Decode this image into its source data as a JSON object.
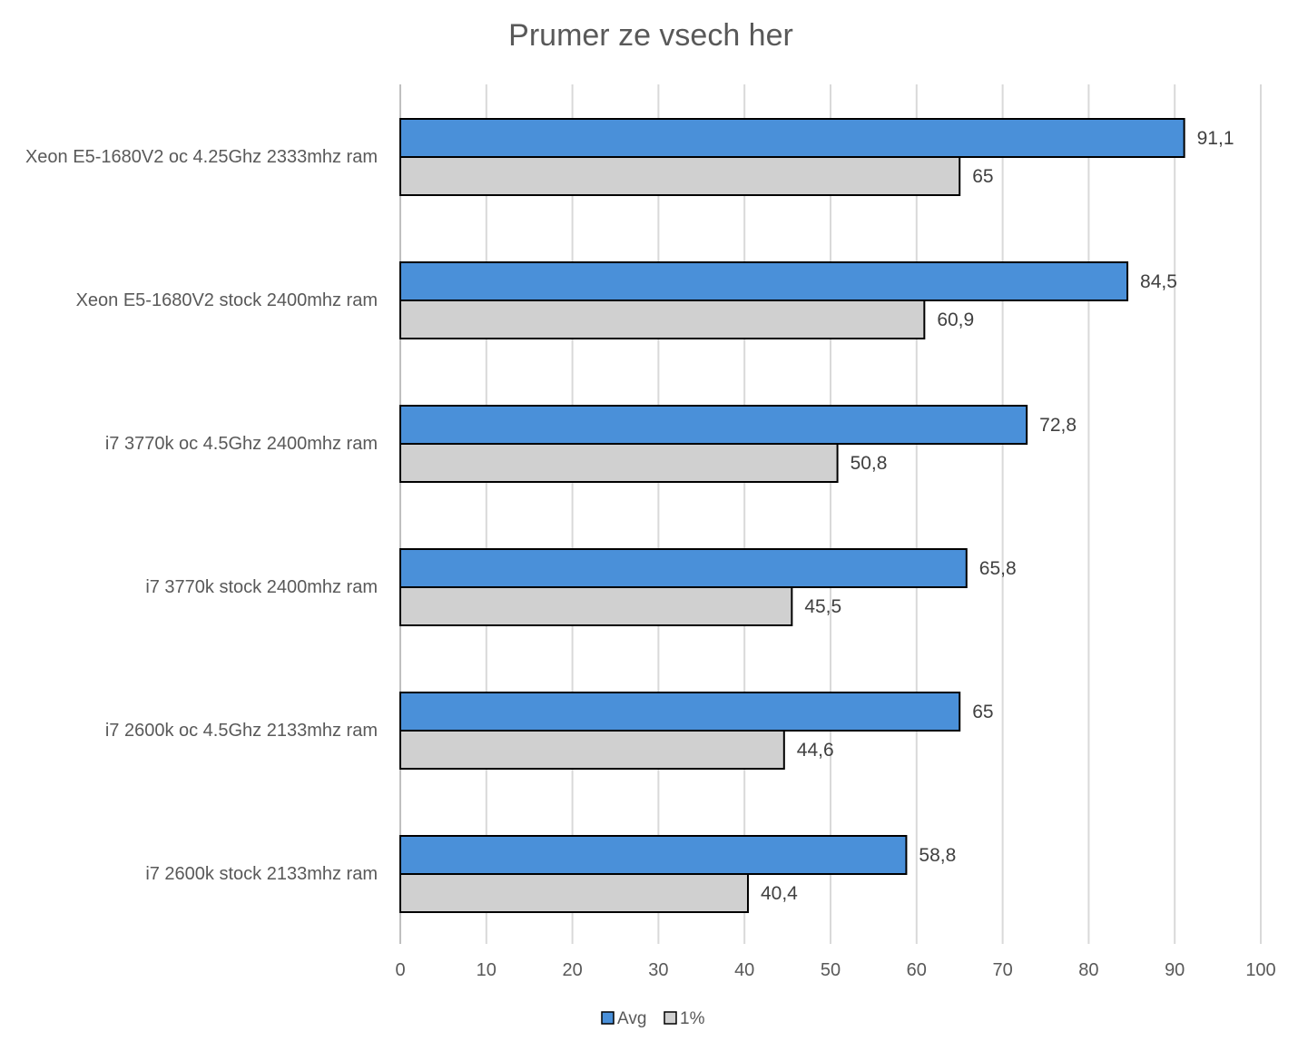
{
  "chart_data": {
    "type": "bar",
    "orientation": "horizontal",
    "title": "Prumer ze vsech her",
    "categories": [
      "Xeon E5-1680V2 oc 4.25Ghz 2333mhz ram",
      "Xeon E5-1680V2 stock 2400mhz ram",
      "i7 3770k oc 4.5Ghz 2400mhz ram",
      "i7 3770k stock 2400mhz ram",
      "i7 2600k oc 4.5Ghz 2133mhz ram",
      "i7 2600k stock 2133mhz ram"
    ],
    "series": [
      {
        "name": "Avg",
        "color": "#4a90d9",
        "values": [
          91.1,
          84.5,
          72.8,
          65.8,
          65,
          58.8
        ],
        "labels": [
          "91,1",
          "84,5",
          "72,8",
          "65,8",
          "65",
          "58,8"
        ]
      },
      {
        "name": "1%",
        "color": "#d0d0d0",
        "values": [
          65,
          60.9,
          50.8,
          45.5,
          44.6,
          40.4
        ],
        "labels": [
          "65",
          "60,9",
          "50,8",
          "45,5",
          "44,6",
          "40,4"
        ]
      }
    ],
    "xlim": [
      0,
      100
    ],
    "xticks": [
      "0",
      "10",
      "20",
      "30",
      "40",
      "50",
      "60",
      "70",
      "80",
      "90",
      "100"
    ],
    "grid": true,
    "legend_position": "bottom"
  }
}
